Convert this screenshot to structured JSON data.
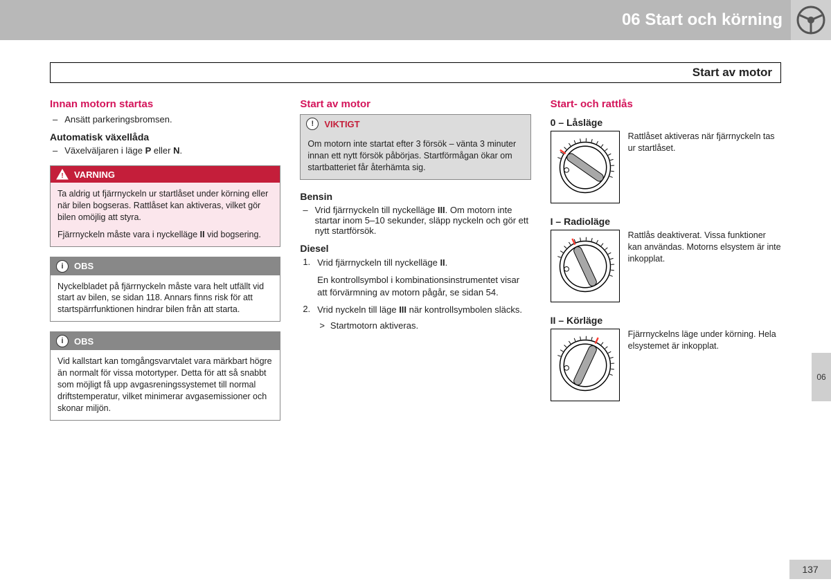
{
  "header": {
    "chapter": "06 Start och körning",
    "section_title": "Start av motor",
    "side_tab": "06",
    "page_number": "137"
  },
  "col1": {
    "h1": "Innan motorn startas",
    "b1": "Ansätt parkeringsbromsen.",
    "h2": "Automatisk växellåda",
    "b2_pre": "Växelväljaren i läge ",
    "b2_p": "P",
    "b2_mid": " eller ",
    "b2_n": "N",
    "b2_post": ".",
    "warning_label": "VARNING",
    "warning_p1": "Ta aldrig ut fjärrnyckeln ur startlåset under körning eller när bilen bogseras. Rattlåset kan aktiveras, vilket gör bilen omöjlig att styra.",
    "warning_p2_pre": "Fjärrnyckeln måste vara i nyckelläge ",
    "warning_p2_bold": "II",
    "warning_p2_post": " vid bogsering.",
    "obs_label": "OBS",
    "obs1": "Nyckelbladet på fjärrnyckeln måste vara helt utfällt vid start av bilen, se sidan 118. Annars finns risk för att startspärrfunktionen hindrar bilen från att starta.",
    "obs2": "Vid kallstart kan tomgångsvarvtalet vara märkbart högre än normalt för vissa motortyper. Detta för att så snabbt som möjligt få upp avgasreningssystemet till normal driftstemperatur, vilket minimerar avgasemissioner och skonar miljön."
  },
  "col2": {
    "h1": "Start av motor",
    "important_label": "VIKTIGT",
    "important_body": "Om motorn inte startat efter 3 försök – vänta 3 minuter innan ett nytt försök påbörjas. Startförmågan ökar om startbatteriet får återhämta sig.",
    "h2": "Bensin",
    "bensin_pre": "Vrid fjärrnyckeln till nyckelläge ",
    "bensin_bold": "III",
    "bensin_post": ". Om motorn inte startar inom 5–10 sekunder, släpp nyckeln och gör ett nytt startförsök.",
    "h3": "Diesel",
    "d1_pre": "Vrid fjärrnyckeln till nyckelläge ",
    "d1_bold": "II",
    "d1_post": ".",
    "d1_sub": "En kontrollsymbol i kombinationsinstrumentet visar att förvärmning av motorn pågår, se sidan 54.",
    "d2_pre": "Vrid nyckeln till läge ",
    "d2_bold": "III",
    "d2_post": " när kontrollsymbolen släcks.",
    "d2_arrow": "Startmotorn aktiveras."
  },
  "col3": {
    "h1": "Start- och rattlås",
    "pos0_h": "0 – Låsläge",
    "pos0_t": "Rattlåset aktiveras när fjärrnyckeln tas ur startlåset.",
    "pos1_h": "I – Radioläge",
    "pos1_t": "Rattlås deaktiverat. Vissa funktioner kan användas. Motorns elsystem är inte inkopplat.",
    "pos2_h": "II – Körläge",
    "pos2_t": "Fjärrnyckelns läge under körning. Hela elsystemet är inkopplat."
  },
  "lock_diagram": {
    "angles_deg": {
      "pos0": -55,
      "pos1": -25,
      "pos2": 25
    },
    "colors": {
      "knob_fill": "#a8a8a8",
      "ring": "#000000",
      "indicator": "#ff3b30"
    }
  }
}
